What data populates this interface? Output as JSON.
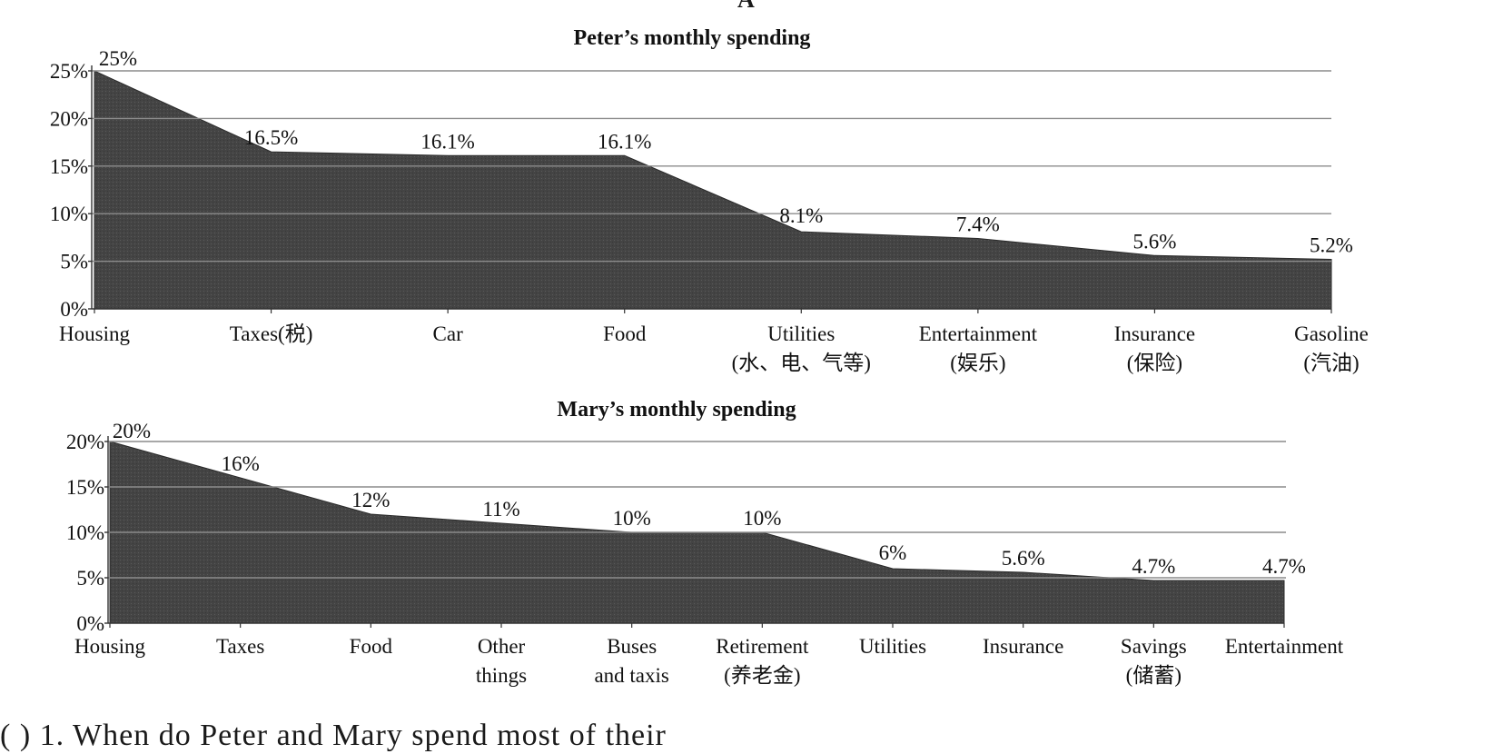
{
  "header_letter": "A",
  "bottom_text": "( ) 1. When do Peter and Mary spend most of their",
  "chart_data": [
    {
      "type": "area",
      "title": "Peter’s monthly spending",
      "categories": [
        [
          "Housing"
        ],
        [
          "Taxes(税)"
        ],
        [
          "Car"
        ],
        [
          "Food"
        ],
        [
          "Utilities",
          "(水、电、气等)"
        ],
        [
          "Entertainment",
          "(娱乐)"
        ],
        [
          "Insurance",
          "(保险)"
        ],
        [
          "Gasoline",
          "(汽油)"
        ]
      ],
      "values": [
        25,
        16.5,
        16.1,
        16.1,
        8.1,
        7.4,
        5.6,
        5.2
      ],
      "data_labels": [
        "25%",
        "16.5%",
        "16.1%",
        "16.1%",
        "8.1%",
        "7.4%",
        "5.6%",
        "5.2%"
      ],
      "ylim": [
        0,
        25
      ],
      "yticks": [
        0,
        5,
        10,
        15,
        20,
        25
      ],
      "ytick_labels": [
        "0%",
        "5%",
        "10%",
        "15%",
        "20%",
        "25%"
      ],
      "grid": true,
      "fill_color": "#454545"
    },
    {
      "type": "area",
      "title": "Mary’s monthly spending",
      "categories": [
        [
          "Housing"
        ],
        [
          "Taxes"
        ],
        [
          "Food"
        ],
        [
          "Other",
          "things"
        ],
        [
          "Buses",
          "and taxis"
        ],
        [
          "Retirement",
          "(养老金)"
        ],
        [
          "Utilities"
        ],
        [
          "Insurance"
        ],
        [
          "Savings",
          "(储蓄)"
        ],
        [
          "Entertainment"
        ]
      ],
      "values": [
        20,
        16,
        12,
        11,
        10,
        10,
        6,
        5.6,
        4.7,
        4.7
      ],
      "data_labels": [
        "20%",
        "16%",
        "12%",
        "11%",
        "10%",
        "10%",
        "6%",
        "5.6%",
        "4.7%",
        "4.7%"
      ],
      "ylim": [
        0,
        20
      ],
      "yticks": [
        0,
        5,
        10,
        15,
        20
      ],
      "ytick_labels": [
        "0%",
        "5%",
        "10%",
        "15%",
        "20%"
      ],
      "grid": true,
      "fill_color": "#4a4a4a"
    }
  ]
}
